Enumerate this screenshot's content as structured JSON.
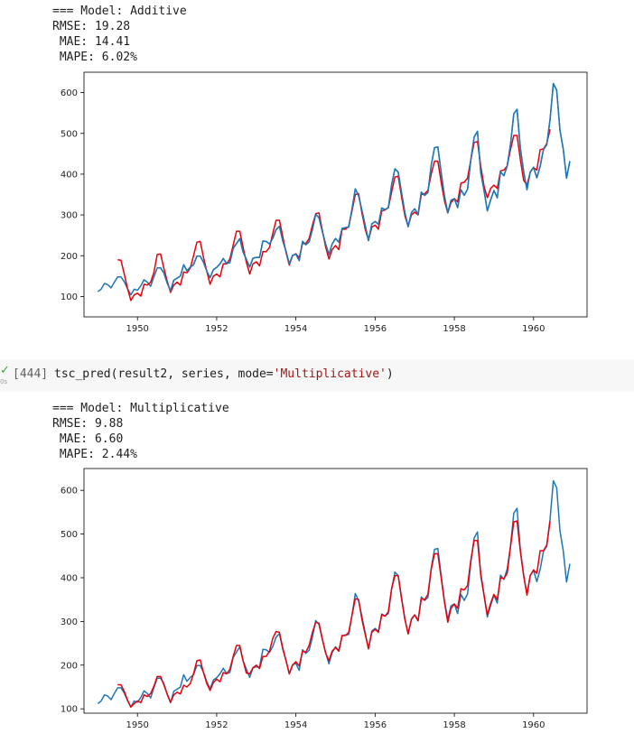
{
  "output1": {
    "lines": [
      "=== Model: Additive",
      "RMSE: 19.28",
      " MAE: 14.41",
      " MAPE: 6.02%"
    ]
  },
  "cell": {
    "execution_count": "[444]",
    "exec_time": "0s",
    "code_prefix": "tsc_pred(result2, series, mode=",
    "code_string": "'Multiplicative'",
    "code_suffix": ")"
  },
  "output2": {
    "lines": [
      "=== Model: Multiplicative",
      "RMSE: 9.88",
      " MAE: 6.60",
      " MAPE: 2.44%"
    ]
  },
  "colors": {
    "actual": "#1f77b4",
    "predicted": "#e8000b"
  },
  "chart_data": [
    {
      "type": "line",
      "title": "",
      "xlabel": "",
      "ylabel": "",
      "xlim": [
        1948.65,
        1961.35
      ],
      "ylim": [
        50,
        650
      ],
      "xticks": [
        1950,
        1952,
        1954,
        1956,
        1958,
        1960
      ],
      "yticks": [
        100,
        200,
        300,
        400,
        500,
        600
      ],
      "grid": false,
      "series": [
        {
          "style": "actual",
          "start_year": 1949.0,
          "values": [
            112,
            118,
            132,
            129,
            121,
            135,
            148,
            148,
            136,
            119,
            104,
            118,
            115,
            126,
            141,
            135,
            125,
            149,
            170,
            170,
            158,
            133,
            114,
            140,
            145,
            150,
            178,
            163,
            172,
            178,
            199,
            199,
            184,
            162,
            146,
            166,
            171,
            180,
            193,
            181,
            183,
            218,
            230,
            242,
            209,
            191,
            172,
            194,
            196,
            196,
            236,
            235,
            229,
            243,
            264,
            272,
            237,
            211,
            180,
            201,
            204,
            188,
            235,
            227,
            234,
            264,
            302,
            293,
            259,
            229,
            203,
            229,
            242,
            233,
            267,
            269,
            270,
            315,
            364,
            347,
            312,
            274,
            237,
            278,
            284,
            277,
            317,
            313,
            318,
            374,
            413,
            405,
            355,
            306,
            271,
            306,
            315,
            301,
            356,
            348,
            355,
            422,
            465,
            467,
            404,
            347,
            305,
            336,
            340,
            318,
            362,
            348,
            363,
            435,
            491,
            505,
            404,
            359,
            310,
            337,
            360,
            342,
            406,
            396,
            420,
            472,
            548,
            559,
            463,
            407,
            362,
            405,
            417,
            391,
            419,
            461,
            472,
            535,
            622,
            606,
            508,
            461,
            390,
            432
          ]
        },
        {
          "style": "predicted",
          "start_year": 1949.5,
          "values": [
            190,
            189,
            155,
            120,
            90,
            104,
            108,
            101,
            130,
            128,
            135,
            160,
            203,
            204,
            170,
            138,
            110,
            128,
            135,
            128,
            160,
            158,
            170,
            200,
            233,
            235,
            196,
            162,
            130,
            150,
            155,
            148,
            180,
            180,
            192,
            226,
            260,
            260,
            220,
            184,
            155,
            180,
            185,
            175,
            210,
            210,
            220,
            255,
            287,
            287,
            248,
            208,
            177,
            200,
            205,
            195,
            230,
            230,
            242,
            275,
            303,
            305,
            262,
            222,
            192,
            215,
            225,
            215,
            265,
            265,
            272,
            310,
            350,
            352,
            305,
            265,
            238,
            270,
            275,
            265,
            310,
            312,
            318,
            356,
            393,
            395,
            345,
            298,
            272,
            300,
            307,
            300,
            350,
            352,
            360,
            400,
            432,
            432,
            380,
            335,
            305,
            330,
            340,
            332,
            378,
            380,
            390,
            435,
            478,
            480,
            420,
            370,
            342,
            365,
            373,
            365,
            408,
            410,
            420,
            460,
            495,
            495,
            435,
            385,
            373,
            405,
            416,
            410,
            460,
            462,
            475,
            510
          ]
        },
        {
          "style": "actual",
          "overlay": true,
          "start_year": 1950.5,
          "values": [
            170,
            170,
            158,
            133,
            114,
            140,
            145,
            150,
            178,
            163,
            172,
            178,
            199,
            199,
            184,
            162,
            146,
            166,
            171,
            180,
            193,
            181,
            183,
            218,
            230,
            242,
            209,
            191,
            172,
            194,
            196,
            196,
            236,
            235,
            229,
            243,
            264,
            272,
            237,
            211,
            180,
            201,
            204,
            188,
            235,
            227,
            234,
            264,
            302,
            293,
            259,
            229,
            203,
            229,
            242,
            233,
            267,
            269,
            270,
            315,
            364,
            347,
            312,
            274,
            237,
            278,
            284,
            277,
            317,
            313,
            318,
            374,
            413,
            405,
            355,
            306,
            271,
            306,
            315,
            301,
            356,
            348,
            355,
            422,
            465,
            467,
            404,
            347,
            305,
            336,
            340,
            318,
            362,
            348,
            363,
            435,
            491,
            505,
            404,
            359,
            310,
            337,
            360,
            342,
            406,
            396,
            420,
            472,
            548,
            559,
            463,
            407,
            362,
            405,
            417,
            391,
            419,
            461,
            472,
            535,
            622,
            606,
            508,
            461,
            390,
            432
          ]
        }
      ]
    },
    {
      "type": "line",
      "title": "",
      "xlabel": "",
      "ylabel": "",
      "xlim": [
        1948.65,
        1961.35
      ],
      "ylim": [
        90,
        650
      ],
      "xticks": [
        1950,
        1952,
        1954,
        1956,
        1958,
        1960
      ],
      "yticks": [
        100,
        200,
        300,
        400,
        500,
        600
      ],
      "grid": false,
      "series": [
        {
          "style": "actual",
          "start_year": 1949.0,
          "values": [
            112,
            118,
            132,
            129,
            121,
            135,
            148,
            148,
            136,
            119,
            104,
            118,
            115,
            126,
            141,
            135,
            125,
            149,
            170,
            170,
            158,
            133,
            114,
            140,
            145,
            150,
            178,
            163,
            172,
            178,
            199,
            199,
            184,
            162,
            146,
            166,
            171,
            180,
            193,
            181,
            183,
            218,
            230,
            242,
            209,
            191,
            172,
            194,
            196,
            196,
            236,
            235,
            229,
            243,
            264,
            272,
            237,
            211,
            180,
            201,
            204,
            188,
            235,
            227,
            234,
            264,
            302,
            293,
            259,
            229,
            203,
            229,
            242,
            233,
            267,
            269,
            270,
            315,
            364,
            347,
            312,
            274,
            237,
            278,
            284,
            277,
            317,
            313,
            318,
            374,
            413,
            405,
            355,
            306,
            271,
            306,
            315,
            301,
            356,
            348,
            355,
            422,
            465,
            467,
            404,
            347,
            305,
            336,
            340,
            318,
            362,
            348,
            363,
            435,
            491,
            505,
            404,
            359,
            310,
            337,
            360,
            342,
            406,
            396,
            420,
            472,
            548,
            559,
            463,
            407,
            362,
            405,
            417,
            391,
            419,
            461,
            472,
            535,
            622,
            606,
            508,
            461,
            390,
            432
          ]
        },
        {
          "style": "predicted",
          "start_year": 1949.5,
          "values": [
            155,
            155,
            140,
            120,
            104,
            112,
            118,
            114,
            132,
            128,
            135,
            152,
            174,
            174,
            155,
            134,
            115,
            132,
            138,
            134,
            154,
            150,
            158,
            180,
            210,
            212,
            183,
            158,
            142,
            160,
            168,
            162,
            183,
            180,
            190,
            220,
            245,
            245,
            210,
            182,
            180,
            194,
            200,
            192,
            220,
            220,
            232,
            262,
            277,
            275,
            240,
            210,
            180,
            200,
            208,
            198,
            232,
            230,
            245,
            275,
            298,
            296,
            260,
            228,
            210,
            232,
            240,
            232,
            268,
            268,
            275,
            315,
            352,
            350,
            305,
            270,
            238,
            275,
            282,
            275,
            315,
            312,
            322,
            375,
            405,
            405,
            352,
            305,
            272,
            305,
            315,
            302,
            352,
            350,
            362,
            420,
            455,
            455,
            400,
            345,
            298,
            330,
            340,
            330,
            375,
            372,
            382,
            440,
            485,
            485,
            410,
            360,
            315,
            342,
            362,
            350,
            400,
            398,
            410,
            470,
            528,
            530,
            460,
            405,
            360,
            405,
            418,
            410,
            462,
            462,
            475,
            530
          ]
        }
      ]
    }
  ]
}
